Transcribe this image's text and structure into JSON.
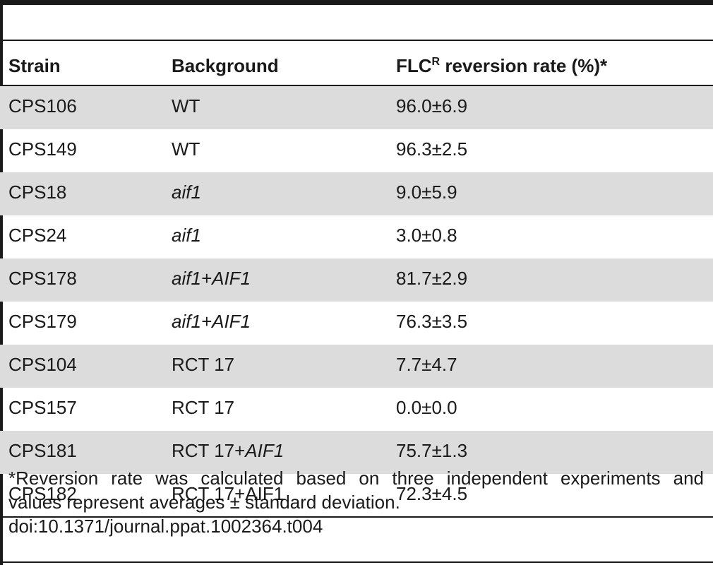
{
  "table": {
    "headers": {
      "strain": "Strain",
      "background": "Background",
      "rate_prefix": "FLC",
      "rate_sup": "R",
      "rate_suffix": " reversion rate (%)*"
    },
    "rows": [
      {
        "strain": "CPS106",
        "bg_plain": "WT",
        "bg_italic": "",
        "bg_after": "",
        "mean": "96.0",
        "pm": "±",
        "sd": "6.9"
      },
      {
        "strain": "CPS149",
        "bg_plain": "WT",
        "bg_italic": "",
        "bg_after": "",
        "mean": "96.3",
        "pm": "±",
        "sd": "2.5"
      },
      {
        "strain": "CPS18",
        "bg_plain": "",
        "bg_italic": "aif1",
        "bg_after": "",
        "mean": "9.0",
        "pm": "±",
        "sd": "5.9"
      },
      {
        "strain": "CPS24",
        "bg_plain": "",
        "bg_italic": "aif1",
        "bg_after": "",
        "mean": "3.0",
        "pm": "±",
        "sd": "0.8"
      },
      {
        "strain": "CPS178",
        "bg_plain": "",
        "bg_italic": "aif1+AIF1",
        "bg_after": "",
        "mean": "81.7",
        "pm": "±",
        "sd": "2.9"
      },
      {
        "strain": "CPS179",
        "bg_plain": "",
        "bg_italic": "aif1+AIF1",
        "bg_after": "",
        "mean": "76.3",
        "pm": "±",
        "sd": "3.5"
      },
      {
        "strain": "CPS104",
        "bg_plain": "RCT 17",
        "bg_italic": "",
        "bg_after": "",
        "mean": "7.7",
        "pm": "±",
        "sd": "4.7"
      },
      {
        "strain": "CPS157",
        "bg_plain": "RCT 17",
        "bg_italic": "",
        "bg_after": "",
        "mean": "0.0",
        "pm": "±",
        "sd": "0.0"
      },
      {
        "strain": "CPS181",
        "bg_plain": "RCT 17+",
        "bg_italic": "AIF1",
        "bg_after": "",
        "mean": "75.7",
        "pm": "±",
        "sd": "1.3"
      },
      {
        "strain": "CPS182",
        "bg_plain": "RCT 17+AIF1",
        "bg_italic": "",
        "bg_after": "",
        "mean": "72.3",
        "pm": "±",
        "sd": "4.5"
      }
    ]
  },
  "footnote": {
    "line1": "*Reversion rate was calculated based on three independent experiments and",
    "line2": "values represent averages ± standard deviation.",
    "doi": "doi:10.1371/journal.ppat.1002364.t004"
  }
}
